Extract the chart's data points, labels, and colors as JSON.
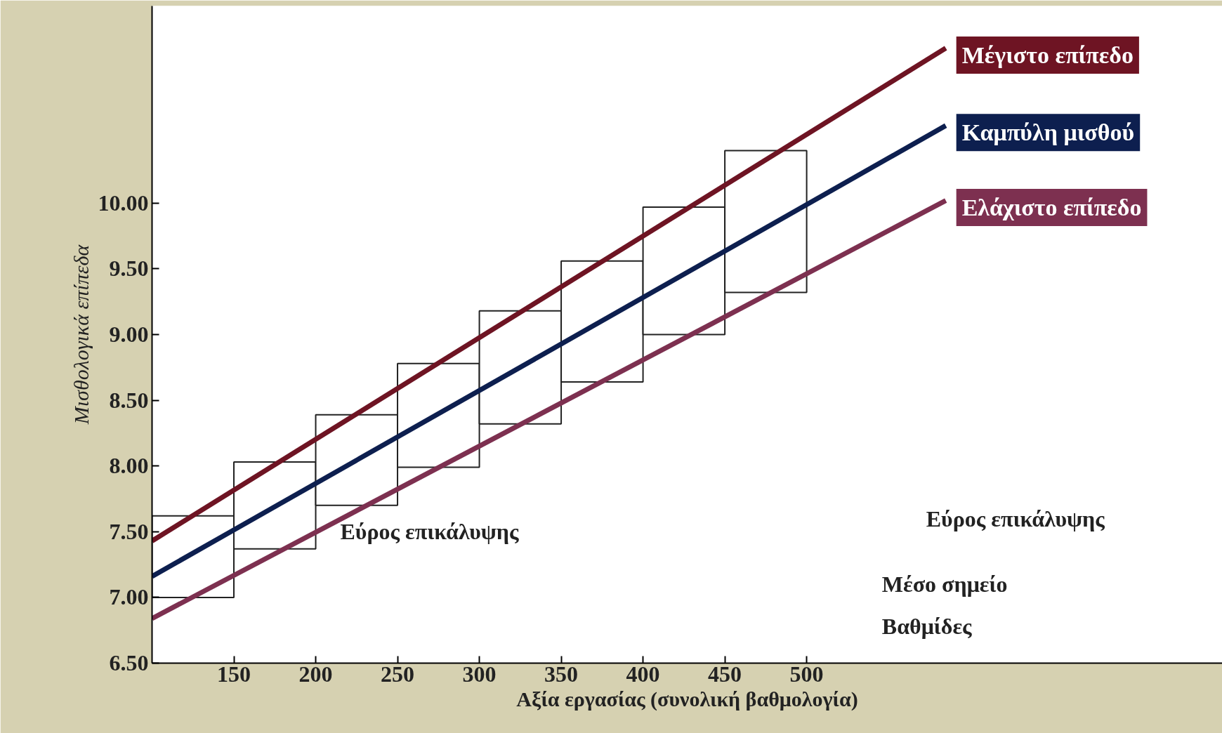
{
  "chart_data": {
    "type": "line",
    "xlabel": "Αξία εργασίας (συνολική βαθμολογία)",
    "ylabel": "Μισθολογικά επίπεδα",
    "xlim": [
      100,
      754
    ],
    "ylim": [
      6.5,
      11.5
    ],
    "xticks": [
      150,
      200,
      250,
      300,
      350,
      400,
      450,
      500
    ],
    "yticks": [
      {
        "value": 6.5,
        "label": "6.50"
      },
      {
        "value": 7.0,
        "label": "7.00"
      },
      {
        "value": 7.5,
        "label": "7.50"
      },
      {
        "value": 8.0,
        "label": "8.00"
      },
      {
        "value": 8.5,
        "label": "8.50"
      },
      {
        "value": 9.0,
        "label": "9.00"
      },
      {
        "value": 9.5,
        "label": "9.50"
      },
      {
        "value": 10.0,
        "label": "10.00"
      }
    ],
    "grid": false,
    "series": [
      {
        "type": "bar",
        "color": "#ffffff",
        "x": [
          125,
          175,
          225,
          275,
          325,
          375,
          425,
          475
        ],
        "base": [
          7.0,
          7.37,
          7.7,
          7.99,
          8.32,
          8.64,
          9.0,
          9.32
        ],
        "values": [
          0.62,
          0.66,
          0.69,
          0.79,
          0.86,
          0.92,
          0.97,
          1.08
        ]
      },
      {
        "name": "Μέγιστο επίπεδο",
        "color": "#6e1423",
        "x": [
          100,
          585
        ],
        "values": [
          7.43,
          11.18
        ]
      },
      {
        "name": "Καμπύλη μισθού",
        "color": "#0d1f4f",
        "x": [
          100,
          585
        ],
        "values": [
          7.16,
          10.59
        ]
      },
      {
        "name": "Ελάχιστο επίπεδο",
        "color": "#7d3050",
        "x": [
          100,
          585
        ],
        "values": [
          6.84,
          10.02
        ]
      }
    ],
    "annotations": [
      "Εύρος επικάλυψης",
      "Εύρος επικάλυψης",
      "Μέσο σημείο",
      "Βαθμίδες"
    ]
  }
}
